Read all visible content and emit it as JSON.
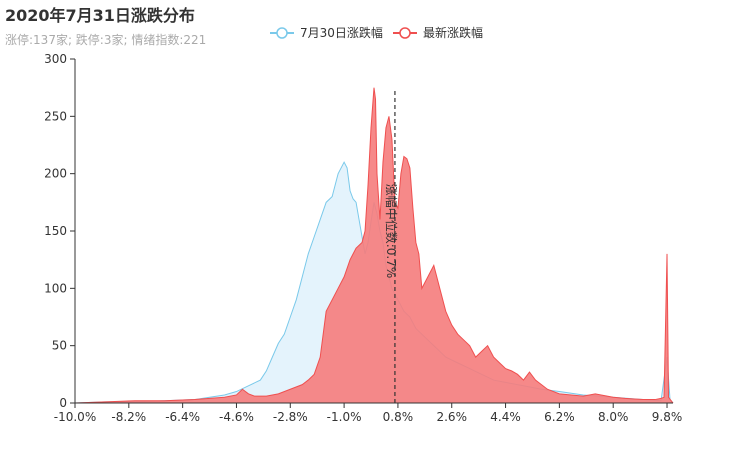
{
  "title": "2020年7月31日涨跌分布",
  "subtitle": "涨停:137家; 跌停:3家; 情绪指数:221",
  "chart_data": {
    "type": "area",
    "xlim": [
      -10.0,
      10.0
    ],
    "ylim": [
      0,
      300
    ],
    "y_ticks": [
      0,
      50,
      100,
      150,
      200,
      250,
      300
    ],
    "x_tick_labels": [
      "-10.0%",
      "-8.2%",
      "-6.4%",
      "-4.6%",
      "-2.8%",
      "-1.0%",
      "0.8%",
      "2.6%",
      "4.4%",
      "6.2%",
      "8.0%",
      "9.8%"
    ],
    "x_tick_values": [
      -10.0,
      -8.2,
      -6.4,
      -4.6,
      -2.8,
      -1.0,
      0.8,
      2.6,
      4.4,
      6.2,
      8.0,
      9.8
    ],
    "legend_position": "top-center",
    "median_line": {
      "x": 0.7,
      "label": "涨幅中位数:0.7%"
    },
    "series": [
      {
        "name": "7月30日涨跌幅",
        "color": "#7ac9ea",
        "fill": "#dff1fb",
        "points": [
          [
            -10.0,
            0
          ],
          [
            -9.0,
            1
          ],
          [
            -8.0,
            1
          ],
          [
            -7.0,
            2
          ],
          [
            -6.0,
            3
          ],
          [
            -5.5,
            5
          ],
          [
            -5.0,
            7
          ],
          [
            -4.6,
            10
          ],
          [
            -4.2,
            15
          ],
          [
            -3.8,
            20
          ],
          [
            -3.6,
            28
          ],
          [
            -3.4,
            40
          ],
          [
            -3.2,
            52
          ],
          [
            -3.0,
            60
          ],
          [
            -2.8,
            75
          ],
          [
            -2.6,
            90
          ],
          [
            -2.4,
            110
          ],
          [
            -2.2,
            130
          ],
          [
            -2.0,
            145
          ],
          [
            -1.8,
            160
          ],
          [
            -1.6,
            175
          ],
          [
            -1.4,
            180
          ],
          [
            -1.3,
            190
          ],
          [
            -1.2,
            200
          ],
          [
            -1.1,
            205
          ],
          [
            -1.0,
            210
          ],
          [
            -0.9,
            205
          ],
          [
            -0.8,
            185
          ],
          [
            -0.7,
            178
          ],
          [
            -0.6,
            175
          ],
          [
            -0.5,
            160
          ],
          [
            -0.4,
            145
          ],
          [
            -0.3,
            130
          ],
          [
            -0.2,
            140
          ],
          [
            -0.1,
            158
          ],
          [
            0.0,
            175
          ],
          [
            0.1,
            165
          ],
          [
            0.2,
            150
          ],
          [
            0.3,
            140
          ],
          [
            0.4,
            120
          ],
          [
            0.5,
            110
          ],
          [
            0.6,
            100
          ],
          [
            0.8,
            90
          ],
          [
            1.0,
            80
          ],
          [
            1.2,
            75
          ],
          [
            1.4,
            65
          ],
          [
            1.6,
            60
          ],
          [
            1.8,
            55
          ],
          [
            2.0,
            50
          ],
          [
            2.4,
            40
          ],
          [
            2.8,
            35
          ],
          [
            3.2,
            30
          ],
          [
            3.6,
            25
          ],
          [
            4.0,
            20
          ],
          [
            4.4,
            18
          ],
          [
            5.0,
            15
          ],
          [
            5.6,
            12
          ],
          [
            6.2,
            10
          ],
          [
            7.0,
            7
          ],
          [
            8.0,
            5
          ],
          [
            9.0,
            3
          ],
          [
            9.6,
            2
          ],
          [
            9.8,
            40
          ],
          [
            9.9,
            3
          ],
          [
            10.0,
            0
          ]
        ]
      },
      {
        "name": "最新涨跌幅",
        "color": "#ef4f4f",
        "fill": "#f57c7c",
        "points": [
          [
            -10.0,
            0
          ],
          [
            -9.0,
            1
          ],
          [
            -8.0,
            2
          ],
          [
            -7.0,
            2
          ],
          [
            -6.0,
            3
          ],
          [
            -5.5,
            4
          ],
          [
            -5.0,
            5
          ],
          [
            -4.6,
            7
          ],
          [
            -4.4,
            12
          ],
          [
            -4.2,
            8
          ],
          [
            -4.0,
            6
          ],
          [
            -3.6,
            6
          ],
          [
            -3.2,
            8
          ],
          [
            -2.8,
            12
          ],
          [
            -2.4,
            16
          ],
          [
            -2.2,
            20
          ],
          [
            -2.0,
            25
          ],
          [
            -1.8,
            40
          ],
          [
            -1.7,
            60
          ],
          [
            -1.6,
            80
          ],
          [
            -1.4,
            90
          ],
          [
            -1.2,
            100
          ],
          [
            -1.0,
            110
          ],
          [
            -0.8,
            125
          ],
          [
            -0.6,
            135
          ],
          [
            -0.4,
            140
          ],
          [
            -0.3,
            150
          ],
          [
            -0.2,
            190
          ],
          [
            -0.1,
            240
          ],
          [
            0.0,
            275
          ],
          [
            0.05,
            265
          ],
          [
            0.1,
            200
          ],
          [
            0.2,
            160
          ],
          [
            0.3,
            210
          ],
          [
            0.4,
            240
          ],
          [
            0.5,
            250
          ],
          [
            0.6,
            230
          ],
          [
            0.7,
            175
          ],
          [
            0.8,
            170
          ],
          [
            0.9,
            200
          ],
          [
            1.0,
            215
          ],
          [
            1.1,
            213
          ],
          [
            1.2,
            205
          ],
          [
            1.3,
            170
          ],
          [
            1.4,
            140
          ],
          [
            1.5,
            130
          ],
          [
            1.6,
            100
          ],
          [
            1.8,
            110
          ],
          [
            2.0,
            120
          ],
          [
            2.2,
            100
          ],
          [
            2.4,
            80
          ],
          [
            2.6,
            68
          ],
          [
            2.8,
            60
          ],
          [
            3.0,
            55
          ],
          [
            3.2,
            50
          ],
          [
            3.4,
            40
          ],
          [
            3.6,
            45
          ],
          [
            3.8,
            50
          ],
          [
            4.0,
            40
          ],
          [
            4.2,
            35
          ],
          [
            4.4,
            30
          ],
          [
            4.6,
            28
          ],
          [
            4.8,
            25
          ],
          [
            5.0,
            20
          ],
          [
            5.2,
            27
          ],
          [
            5.4,
            20
          ],
          [
            5.6,
            16
          ],
          [
            5.8,
            12
          ],
          [
            6.0,
            10
          ],
          [
            6.2,
            8
          ],
          [
            6.6,
            7
          ],
          [
            7.0,
            6
          ],
          [
            7.4,
            8
          ],
          [
            8.0,
            5
          ],
          [
            8.4,
            4
          ],
          [
            9.0,
            3
          ],
          [
            9.4,
            3
          ],
          [
            9.6,
            4
          ],
          [
            9.7,
            5
          ],
          [
            9.8,
            130
          ],
          [
            9.85,
            5
          ],
          [
            10.0,
            0
          ]
        ]
      }
    ]
  }
}
